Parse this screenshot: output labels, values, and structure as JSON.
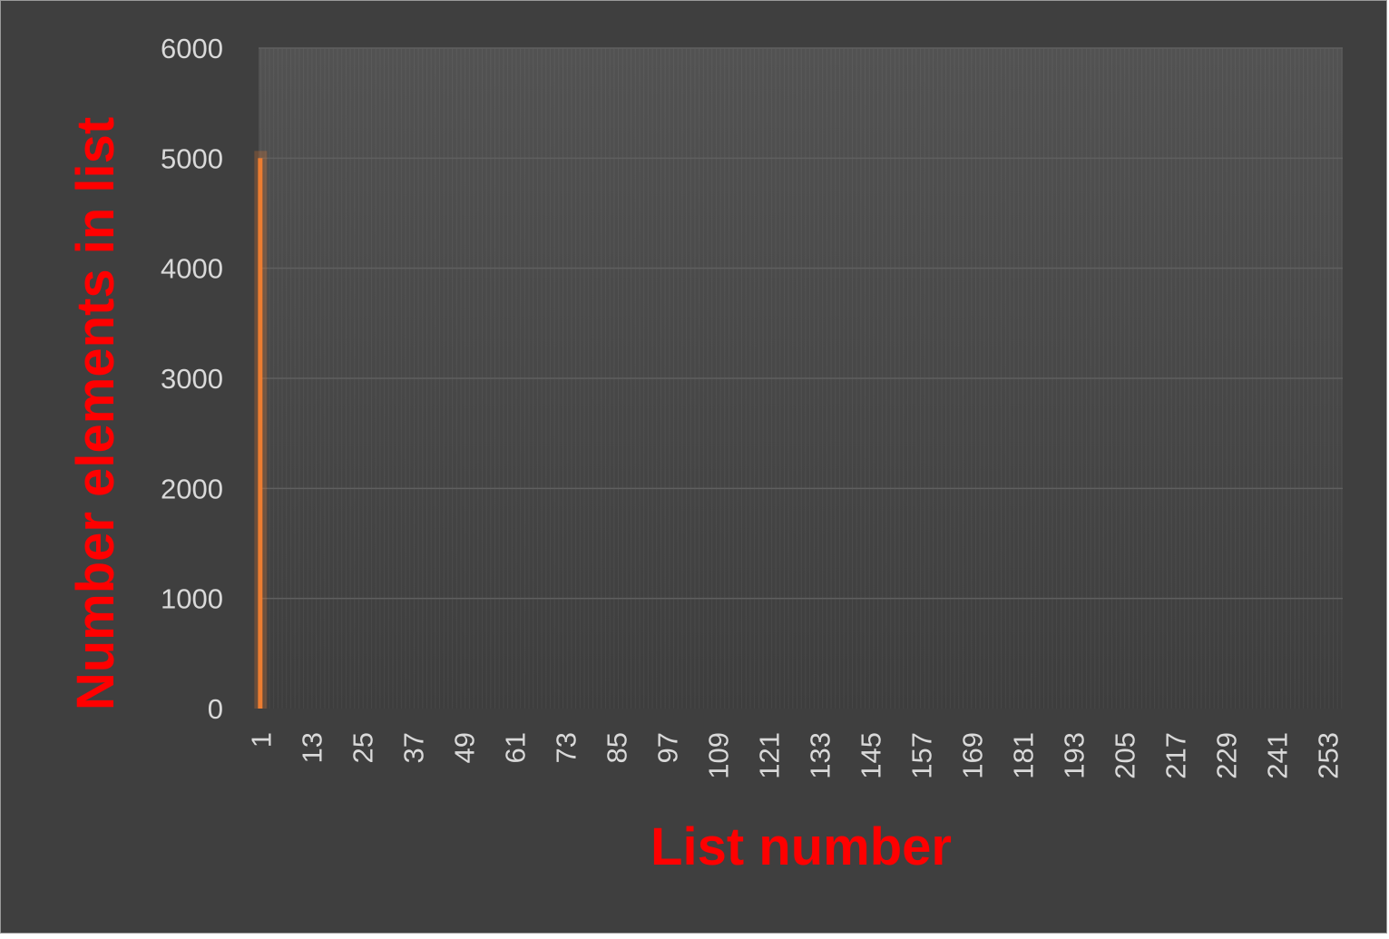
{
  "chart_data": {
    "type": "bar",
    "title": "",
    "xlabel": "List number",
    "ylabel": "Number elements in list",
    "ylim": [
      0,
      6000
    ],
    "yticks": [
      0,
      1000,
      2000,
      3000,
      4000,
      5000,
      6000
    ],
    "x_range": [
      1,
      256
    ],
    "xtick_labels": [
      "1",
      "13",
      "25",
      "37",
      "49",
      "61",
      "73",
      "85",
      "97",
      "109",
      "121",
      "133",
      "145",
      "157",
      "169",
      "181",
      "193",
      "205",
      "217",
      "229",
      "241",
      "253"
    ],
    "grid": true,
    "legend": "none",
    "series": [
      {
        "color": "#ed7d31",
        "points": [
          {
            "x": 1,
            "y": 5000
          }
        ]
      }
    ]
  }
}
